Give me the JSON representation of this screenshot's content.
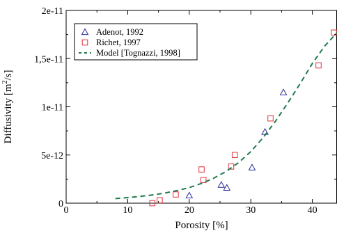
{
  "chart_data": {
    "type": "scatter",
    "xlabel": "Porosity [%]",
    "ylabel_main": "Diffusivity [m",
    "ylabel_sup": "2",
    "ylabel_end": "/s]",
    "xlim": [
      0,
      44
    ],
    "ylim": [
      0,
      2e-11
    ],
    "xticks": [
      0,
      10,
      20,
      30,
      40
    ],
    "xtick_labels": [
      "0",
      "10",
      "20",
      "30",
      "40"
    ],
    "yticks": [
      0,
      5e-12,
      1e-11,
      1.5e-11,
      2e-11
    ],
    "ytick_labels": [
      "0",
      "5e-12",
      "1e-11",
      "1,5e-11",
      "2e-11"
    ],
    "legend_position": "top-left",
    "grid": false,
    "series": [
      {
        "name": "Adenot, 1992",
        "marker": "triangle",
        "color": "#2b2b9b",
        "x": [
          20.0,
          25.2,
          26.1,
          30.2,
          32.3,
          35.3
        ],
        "y": [
          8e-13,
          1.9e-12,
          1.6e-12,
          3.7e-12,
          7.4e-12,
          1.15e-11
        ]
      },
      {
        "name": "Richet, 1997",
        "marker": "square",
        "color": "#e0303a",
        "x": [
          14.0,
          15.2,
          17.8,
          22.0,
          22.3,
          26.8,
          27.4,
          33.2,
          41.0,
          43.5
        ],
        "y": [
          0.0,
          3e-13,
          9e-13,
          3.5e-12,
          2.4e-12,
          3.8e-12,
          5e-12,
          8.8e-12,
          1.43e-11,
          1.77e-11
        ]
      },
      {
        "name": "Model [Tognazzi, 1998]",
        "marker": "dashed-line",
        "color": "#1f7a4d",
        "x": [
          8,
          10,
          12,
          14,
          16,
          18,
          20,
          22,
          24,
          26,
          28,
          30,
          32,
          34,
          36,
          38,
          40,
          42,
          44
        ],
        "y": [
          4.8e-13,
          5.8e-13,
          7e-13,
          8.5e-13,
          1.05e-12,
          1.3e-12,
          1.62e-12,
          2.05e-12,
          2.6e-12,
          3.3e-12,
          4.2e-12,
          5.35e-12,
          6.8e-12,
          8.5e-12,
          1.04e-11,
          1.24e-11,
          1.45e-11,
          1.63e-11,
          1.77e-11
        ]
      }
    ]
  }
}
